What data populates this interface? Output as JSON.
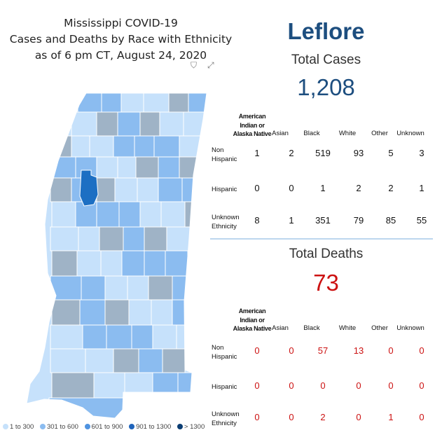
{
  "title": {
    "line1": "Mississippi COVID-19",
    "line2": "Cases and Deaths by Race with Ethnicity",
    "line3": "as of 6 pm CT, August 24, 2020"
  },
  "icons": {
    "filter": "filter-icon",
    "focus": "focus-mode-icon"
  },
  "county_name": "Leflore",
  "colors": {
    "bin1": "#c6e1fb",
    "bin2": "#8bbcf0",
    "bin3": "#4f93e0",
    "bin4": "#2064bb",
    "bin5": "#0b3d73",
    "selected": "#1d6fc3",
    "grey": "#9fb3c6",
    "cases_accent": "#1d4e7f",
    "deaths_accent": "#cc1111"
  },
  "legend": [
    {
      "label": "1 to 300",
      "color": "#c6e1fb"
    },
    {
      "label": "301 to 600",
      "color": "#8bbcf0"
    },
    {
      "label": "601 to 900",
      "color": "#4f93e0"
    },
    {
      "label": "901 to 1300",
      "color": "#2064bb"
    },
    {
      "label": "> 1300",
      "color": "#0b3d73"
    }
  ],
  "chart_data": [
    {
      "type": "table",
      "title": "Total Cases",
      "total": "1,208",
      "column_header_aian": [
        "American",
        "Indian or",
        "Alaska Native"
      ],
      "columns": [
        "American Indian or Alaska Native",
        "Asian",
        "Black",
        "White",
        "Other",
        "Unknown"
      ],
      "column_labels": [
        "Asian",
        "Black",
        "White",
        "Other",
        "Unknown"
      ],
      "rows": [
        {
          "label_lines": [
            "Non",
            "Hispanic"
          ],
          "values": [
            1,
            2,
            519,
            93,
            5,
            3
          ]
        },
        {
          "label_lines": [
            "Hispanic"
          ],
          "values": [
            0,
            0,
            1,
            2,
            2,
            1
          ]
        },
        {
          "label_lines": [
            "Unknown",
            "Ethnicity"
          ],
          "values": [
            8,
            1,
            351,
            79,
            85,
            55
          ]
        }
      ]
    },
    {
      "type": "table",
      "title": "Total Deaths",
      "total": "73",
      "column_header_aian": [
        "American",
        "Indian or",
        "Alaska Native"
      ],
      "columns": [
        "American Indian or Alaska Native",
        "Asian",
        "Black",
        "White",
        "Other",
        "Unknown"
      ],
      "column_labels": [
        "Asian",
        "Black",
        "White",
        "Other",
        "Unknown"
      ],
      "rows": [
        {
          "label_lines": [
            "Non",
            "Hispanic"
          ],
          "values": [
            0,
            0,
            57,
            13,
            0,
            0
          ]
        },
        {
          "label_lines": [
            "Hispanic"
          ],
          "values": [
            0,
            0,
            0,
            0,
            0,
            0
          ]
        },
        {
          "label_lines": [
            "Unknown",
            "Ethnicity"
          ],
          "values": [
            0,
            0,
            2,
            0,
            1,
            0
          ]
        }
      ]
    }
  ]
}
